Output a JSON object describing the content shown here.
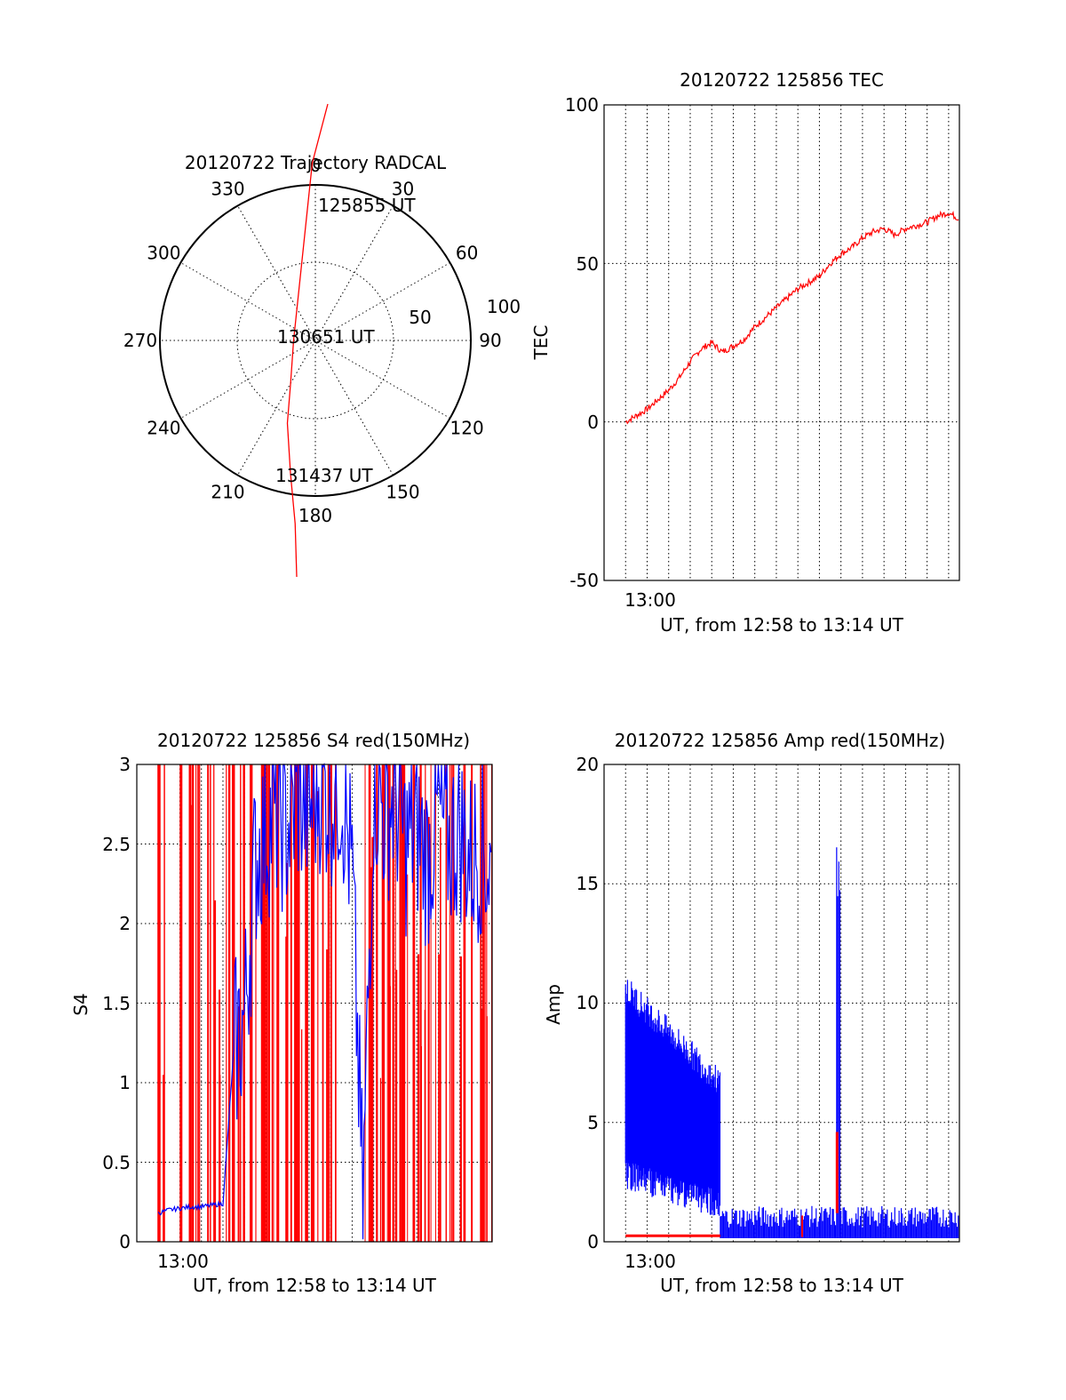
{
  "chart_data": [
    {
      "id": "trajectory",
      "type": "polar",
      "title": "20120722 Trajectory RADCAL",
      "azimuth_labels": [
        "0",
        "30",
        "60",
        "90",
        "120",
        "150",
        "180",
        "210",
        "240",
        "270",
        "300",
        "330"
      ],
      "radial_labels": [
        "50",
        "100"
      ],
      "elevation_range": [
        0,
        100
      ],
      "trajectory": [
        [
          8,
          80
        ],
        [
          -2,
          60
        ],
        [
          -6,
          40
        ],
        [
          -10,
          20
        ],
        [
          -14,
          0
        ],
        [
          -16,
          -15
        ],
        [
          -18,
          -28
        ],
        [
          -16,
          -45
        ],
        [
          -13,
          -62
        ],
        [
          -12,
          -80
        ]
      ],
      "annotations": [
        "125855 UT",
        "130651 UT",
        "131437 UT"
      ],
      "line_color": "#ff0000"
    },
    {
      "id": "tec",
      "type": "line",
      "title": "20120722 125856 TEC",
      "ylabel": "TEC",
      "xlabel": "UT, from 12:58 to 13:14 UT",
      "x_tick_labels": [
        "13:00"
      ],
      "y_tick_labels": [
        "100",
        "50",
        "0",
        "-50"
      ],
      "ylim": [
        -50,
        100
      ],
      "xlim_minutes": [
        -2,
        14.5
      ],
      "grid": true,
      "series": [
        {
          "color": "#ff0000",
          "x": [
            -1,
            -0.5,
            0,
            0.5,
            1,
            1.5,
            2,
            2.5,
            3,
            3.5,
            4,
            4.5,
            5,
            5.5,
            6,
            6.5,
            7,
            7.5,
            8,
            8.5,
            9,
            9.5,
            10,
            10.5,
            11,
            11.5,
            12,
            12.5,
            13,
            13.5,
            14,
            14.5
          ],
          "values": [
            0,
            2,
            4,
            7,
            10,
            14,
            19,
            23,
            25,
            22,
            24,
            26,
            30,
            33,
            36,
            39,
            42,
            44,
            46,
            50,
            53,
            55,
            58,
            60,
            61,
            59,
            61,
            62,
            63,
            65,
            66,
            64
          ]
        }
      ]
    },
    {
      "id": "s4",
      "type": "line",
      "title": "20120722 125856 S4 red(150MHz)",
      "ylabel": "S4",
      "xlabel": "UT, from 12:58 to 13:14 UT",
      "x_tick_labels": [
        "13:00"
      ],
      "y_tick_labels": [
        "3",
        "2.5",
        "2",
        "1.5",
        "1",
        "0.5",
        "0"
      ],
      "ylim": [
        0,
        3
      ],
      "xlim_minutes": [
        -2,
        14.5
      ],
      "grid": true,
      "series": [
        {
          "color": "#ff0000",
          "note": "dense spikes across full range"
        },
        {
          "color": "#0000ff",
          "x": [
            -1,
            -0.5,
            0,
            0.5,
            1,
            1.5,
            2,
            2.5,
            3,
            3.5,
            4,
            4.5,
            5,
            5.5,
            6,
            6.5,
            7,
            7.5,
            8,
            8.5,
            9,
            9.5,
            10,
            10.5,
            11,
            11.5,
            12,
            12.5,
            13,
            13.5,
            14,
            14.5
          ],
          "values": [
            0.18,
            0.2,
            0.21,
            0.22,
            0.22,
            0.23,
            0.24,
            1.2,
            1.4,
            2.4,
            2.6,
            2.7,
            2.6,
            2.8,
            2.7,
            2.9,
            2.8,
            2.9,
            2.3,
            0.22,
            2.9,
            2.7,
            2.8,
            2.5,
            2.6,
            2.4,
            2.7,
            2.5,
            2.6,
            2.4,
            2.5,
            2.3
          ]
        }
      ]
    },
    {
      "id": "amp",
      "type": "line",
      "title": "20120722 125856 Amp red(150MHz)",
      "ylabel": "Amp",
      "xlabel": "UT, from 12:58 to 13:14 UT",
      "x_tick_labels": [
        "13:00"
      ],
      "y_tick_labels": [
        "20",
        "15",
        "10",
        "5",
        "0"
      ],
      "ylim": [
        0,
        20
      ],
      "xlim_minutes": [
        -2,
        14.5
      ],
      "grid": true,
      "series": [
        {
          "color": "#0000ff",
          "x": [
            -1,
            -0.5,
            0,
            0.5,
            1,
            1.5,
            2,
            2.5,
            3,
            3.5,
            4,
            4.5,
            5,
            5.5,
            6,
            6.5,
            7,
            7.5,
            8,
            8.5,
            8.7,
            8.9,
            9,
            9.5,
            10,
            11,
            12,
            13,
            14,
            14.5
          ],
          "values": [
            3.5,
            3.2,
            3.0,
            2.8,
            2.6,
            2.5,
            2.3,
            2.2,
            2.1,
            0.6,
            0.5,
            0.4,
            0.5,
            0.5,
            0.6,
            0.5,
            0.5,
            0.5,
            0.5,
            0.5,
            11,
            12,
            0.6,
            0.7,
            0.6,
            0.6,
            0.7,
            0.6,
            0.6,
            0.6
          ],
          "peaks": [
            11.3,
            9.5,
            9,
            8,
            7,
            6.5,
            6,
            5.5,
            5.2,
            5,
            17.2
          ]
        },
        {
          "color": "#ff0000",
          "x": [
            -1,
            0,
            1,
            2,
            3,
            4,
            5,
            6,
            7,
            8,
            8.7,
            8.9,
            9,
            10,
            11,
            12,
            13,
            14
          ],
          "values": [
            0.2,
            0.2,
            0.2,
            0.2,
            0.2,
            0.2,
            0.2,
            0.3,
            0.6,
            0.3,
            4.5,
            4.6,
            0.2,
            0.2,
            0.2,
            0.2,
            0.2,
            0.2
          ]
        }
      ]
    }
  ]
}
